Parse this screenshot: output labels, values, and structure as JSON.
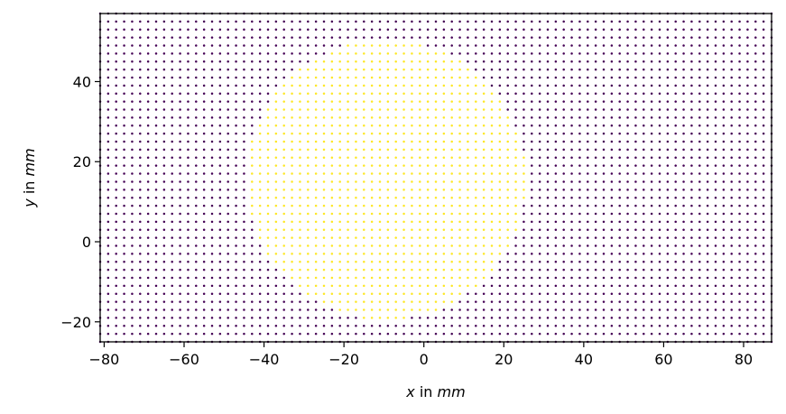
{
  "chart_data": {
    "type": "scatter",
    "title": "",
    "xlabel": {
      "var": "x",
      "text": " in ",
      "unit": "mm"
    },
    "ylabel": {
      "var": "y",
      "text": " in ",
      "unit": "mm"
    },
    "xlim": [
      -81,
      87
    ],
    "ylim": [
      -25,
      57
    ],
    "x_ticks": [
      -80,
      -60,
      -40,
      -20,
      0,
      20,
      40,
      60,
      80
    ],
    "x_tick_labels": [
      "−80",
      "−60",
      "−40",
      "−20",
      "0",
      "20",
      "40",
      "60",
      "80"
    ],
    "y_ticks": [
      -20,
      0,
      20,
      40
    ],
    "y_tick_labels": [
      "−20",
      "0",
      "20",
      "40"
    ],
    "grid": false,
    "legend": "none",
    "points": {
      "x_range": [
        -81,
        87
      ],
      "y_range": [
        -25,
        57
      ],
      "spacing": 2
    },
    "region": {
      "shape": "circle",
      "center": [
        -9.5,
        15.5
      ],
      "radius": 35,
      "clip_x": [
        -44,
        25
      ]
    },
    "colors": {
      "outside": "#440154",
      "inside": "#fde725",
      "axes": "#000000"
    }
  }
}
